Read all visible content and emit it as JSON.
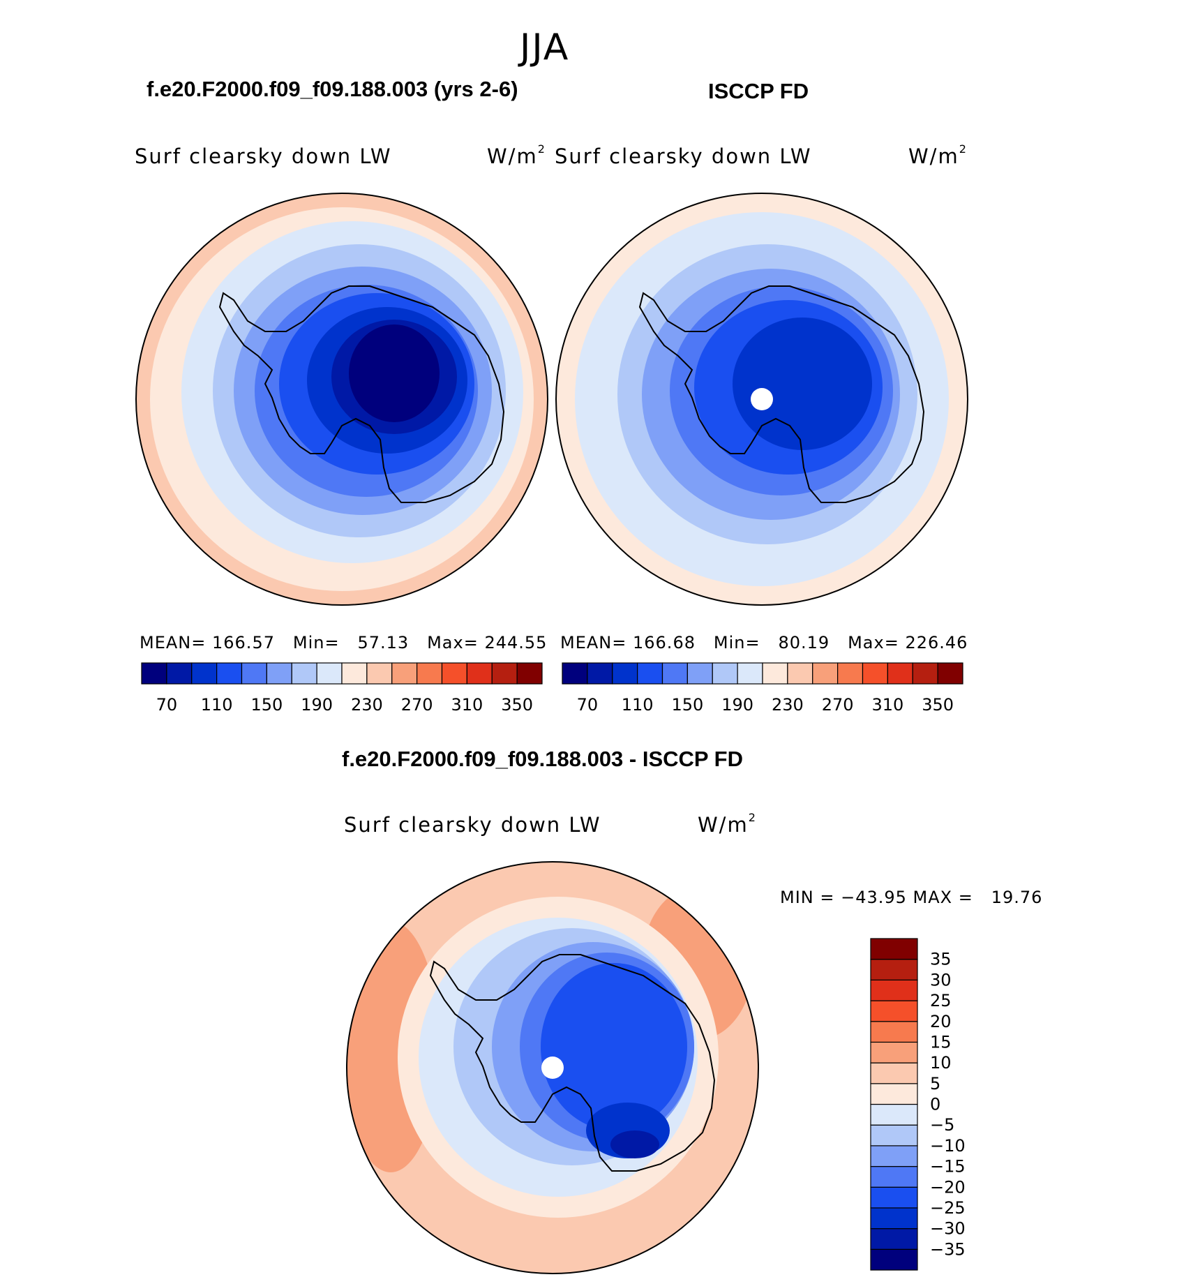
{
  "season": "JJA",
  "panels": {
    "model": {
      "title": "f.e20.F2000.f09_f09.188.003 (yrs 2-6)",
      "variable": "Surf clearsky down LW",
      "units": "W/m",
      "units_sup": "2",
      "mean_label": "MEAN=",
      "mean": "166.57",
      "min_label": "Min=",
      "min": "57.13",
      "max_label": "Max=",
      "max": "244.55"
    },
    "obs": {
      "title": "ISCCP FD",
      "variable": "Surf clearsky down LW",
      "units": "W/m",
      "units_sup": "2",
      "mean_label": "MEAN=",
      "mean": "166.68",
      "min_label": "Min=",
      "min": "80.19",
      "max_label": "Max=",
      "max": "226.46"
    },
    "diff": {
      "title": "f.e20.F2000.f09_f09.188.003 - ISCCP FD",
      "variable": "Surf clearsky down LW",
      "units": "W/m",
      "units_sup": "2",
      "minmax": "MIN = −43.95 MAX =   19.76"
    }
  },
  "colorbar_main": {
    "colors": [
      "#00007d",
      "#0019a6",
      "#0033cc",
      "#1a4ff0",
      "#4f78f5",
      "#7fa0f7",
      "#b0c8f8",
      "#dbe8fa",
      "#fde9dc",
      "#fbc9b0",
      "#f8a07a",
      "#f77a4e",
      "#f5502a",
      "#e0301a",
      "#b51f10",
      "#800000"
    ],
    "ticks": [
      "70",
      "110",
      "150",
      "190",
      "230",
      "270",
      "310",
      "350"
    ]
  },
  "colorbar_diff": {
    "colors": [
      "#00007d",
      "#0019a6",
      "#0033cc",
      "#1a4ff0",
      "#4f78f5",
      "#7fa0f7",
      "#b0c8f8",
      "#dbe8fa",
      "#fde9dc",
      "#fbc9b0",
      "#f8a07a",
      "#f77a4e",
      "#f5502a",
      "#e0301a",
      "#b51f10",
      "#800000"
    ],
    "ticks": [
      "35",
      "30",
      "25",
      "20",
      "15",
      "10",
      "5",
      "0",
      "−5",
      "−10",
      "−15",
      "−20",
      "−25",
      "−30",
      "−35"
    ]
  }
}
